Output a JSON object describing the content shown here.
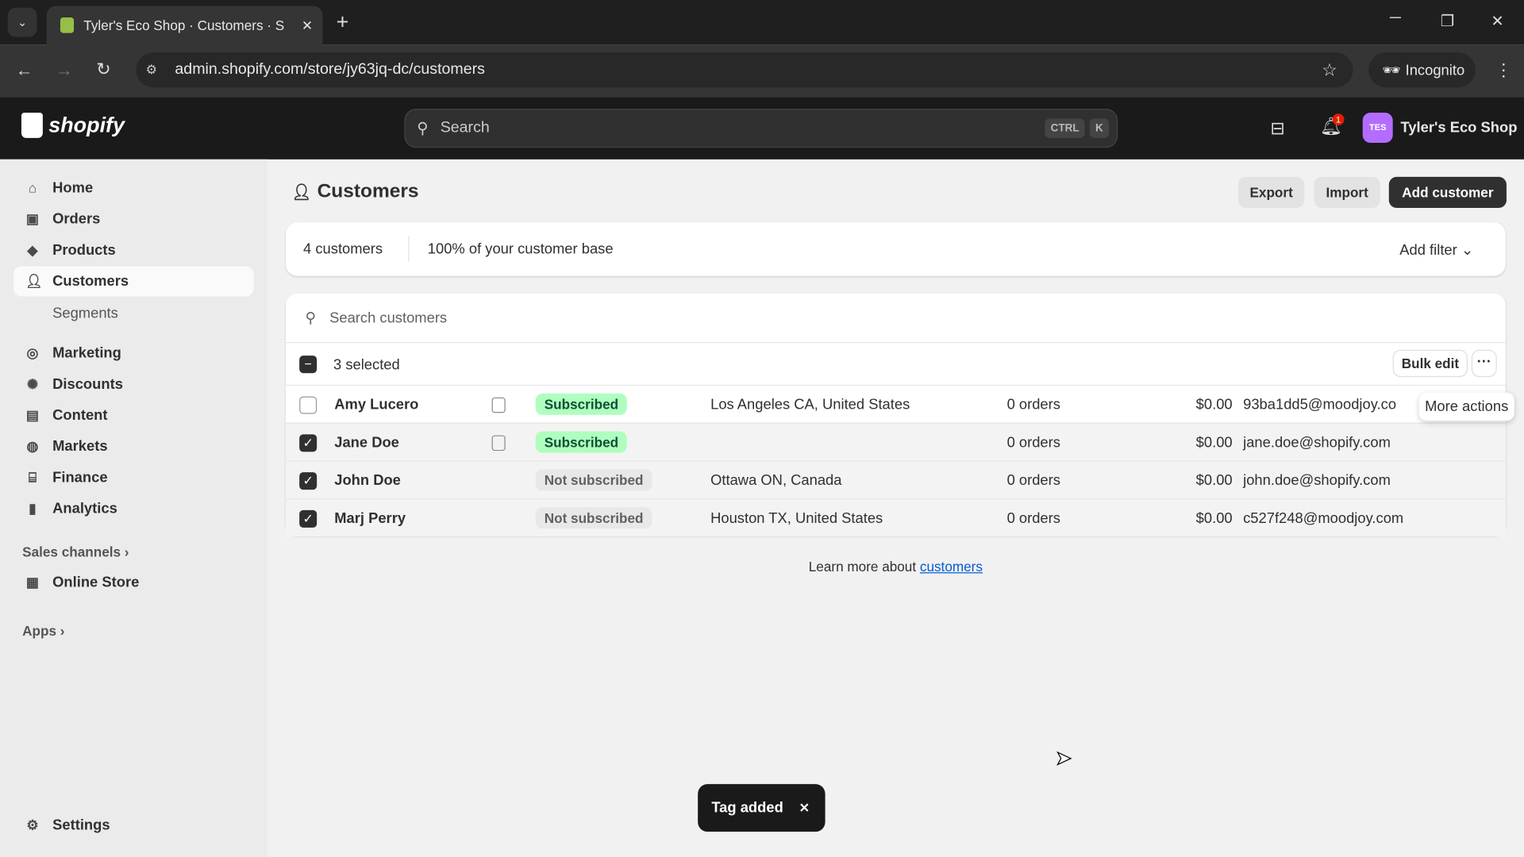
{
  "browser": {
    "tab_title": "Tyler's Eco Shop · Customers · S",
    "url": "admin.shopify.com/store/jy63jq-dc/customers",
    "profile": "Incognito"
  },
  "topbar": {
    "logo": "shopify",
    "search_placeholder": "Search",
    "shortcut_ctrl": "CTRL",
    "shortcut_k": "K",
    "notification_count": "1",
    "avatar_initials": "TES",
    "store_name": "Tyler's Eco Shop"
  },
  "sidebar": {
    "items": [
      {
        "label": "Home",
        "icon": "home-icon"
      },
      {
        "label": "Orders",
        "icon": "orders-icon"
      },
      {
        "label": "Products",
        "icon": "tag-icon"
      },
      {
        "label": "Customers",
        "icon": "person-icon"
      },
      {
        "label": "Segments"
      },
      {
        "label": "Marketing",
        "icon": "target-icon"
      },
      {
        "label": "Discounts",
        "icon": "discount-icon"
      },
      {
        "label": "Content",
        "icon": "content-icon"
      },
      {
        "label": "Markets",
        "icon": "globe-icon"
      },
      {
        "label": "Finance",
        "icon": "bank-icon"
      },
      {
        "label": "Analytics",
        "icon": "chart-icon"
      }
    ],
    "sales_channels": "Sales channels",
    "online_store": "Online Store",
    "apps": "Apps",
    "settings": "Settings"
  },
  "page": {
    "title": "Customers",
    "export": "Export",
    "import": "Import",
    "add_customer": "Add customer"
  },
  "summary": {
    "count": "4 customers",
    "percent": "100% of your customer base",
    "add_filter": "Add filter"
  },
  "table": {
    "search_placeholder": "Search customers",
    "selected": "3 selected",
    "bulk_edit": "Bulk edit",
    "more_actions_tooltip": "More actions",
    "rows": [
      {
        "name": "Amy Lucero",
        "note": true,
        "status": "Subscribed",
        "location": "Los Angeles CA, United States",
        "orders": "0 orders",
        "spent": "$0.00",
        "email": "93ba1dd5@moodjoy.co",
        "checked": false
      },
      {
        "name": "Jane Doe",
        "note": true,
        "status": "Subscribed",
        "location": "",
        "orders": "0 orders",
        "spent": "$0.00",
        "email": "jane.doe@shopify.com",
        "checked": true
      },
      {
        "name": "John Doe",
        "note": false,
        "status": "Not subscribed",
        "location": "Ottawa ON, Canada",
        "orders": "0 orders",
        "spent": "$0.00",
        "email": "john.doe@shopify.com",
        "checked": true
      },
      {
        "name": "Marj Perry",
        "note": false,
        "status": "Not subscribed",
        "location": "Houston TX, United States",
        "orders": "0 orders",
        "spent": "$0.00",
        "email": "c527f248@moodjoy.com",
        "checked": true
      }
    ]
  },
  "footer": {
    "learn_more": "Learn more about",
    "link": "customers"
  },
  "toast": {
    "text": "Tag added"
  }
}
